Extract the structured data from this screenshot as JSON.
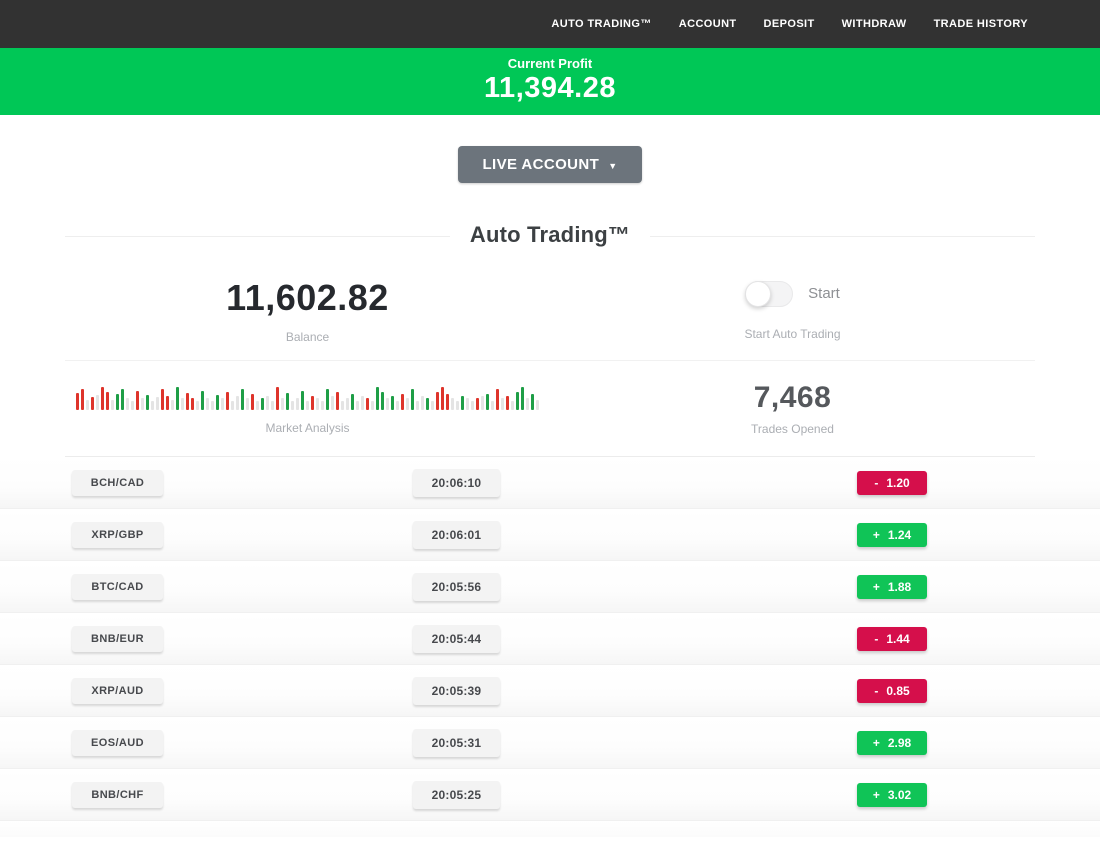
{
  "nav": {
    "items": [
      {
        "label": "AUTO TRADING™"
      },
      {
        "label": "ACCOUNT"
      },
      {
        "label": "DEPOSIT"
      },
      {
        "label": "WITHDRAW"
      },
      {
        "label": "TRADE HISTORY"
      }
    ]
  },
  "profit_banner": {
    "label": "Current Profit",
    "value": "11,394.28"
  },
  "account_selector": {
    "label": "LIVE ACCOUNT",
    "caret": "▼"
  },
  "section": {
    "title": "Auto Trading™"
  },
  "stats": {
    "balance": {
      "value": "11,602.82",
      "label": "Balance"
    },
    "auto_trading": {
      "toggle_label": "Start",
      "toggle_state": "off",
      "label": "Start Auto Trading"
    },
    "market_analysis": {
      "label": "Market Analysis",
      "bars": [
        [
          "r",
          17
        ],
        [
          "r",
          21
        ],
        [
          "x",
          10
        ],
        [
          "r",
          13
        ],
        [
          "x",
          15
        ],
        [
          "r",
          23
        ],
        [
          "r",
          18
        ],
        [
          "x",
          10
        ],
        [
          "g",
          16
        ],
        [
          "g",
          21
        ],
        [
          "x",
          12
        ],
        [
          "x",
          9
        ],
        [
          "r",
          19
        ],
        [
          "x",
          12
        ],
        [
          "g",
          15
        ],
        [
          "x",
          9
        ],
        [
          "x",
          13
        ],
        [
          "r",
          21
        ],
        [
          "r",
          14
        ],
        [
          "x",
          10
        ],
        [
          "g",
          23
        ],
        [
          "x",
          12
        ],
        [
          "r",
          17
        ],
        [
          "r",
          12
        ],
        [
          "x",
          9
        ],
        [
          "g",
          19
        ],
        [
          "x",
          12
        ],
        [
          "x",
          9
        ],
        [
          "g",
          15
        ],
        [
          "x",
          12
        ],
        [
          "r",
          18
        ],
        [
          "x",
          9
        ],
        [
          "x",
          14
        ],
        [
          "g",
          21
        ],
        [
          "x",
          12
        ],
        [
          "r",
          16
        ],
        [
          "x",
          9
        ],
        [
          "g",
          12
        ],
        [
          "x",
          14
        ],
        [
          "x",
          9
        ],
        [
          "r",
          23
        ],
        [
          "x",
          12
        ],
        [
          "g",
          17
        ],
        [
          "x",
          9
        ],
        [
          "x",
          12
        ],
        [
          "g",
          19
        ],
        [
          "x",
          9
        ],
        [
          "r",
          14
        ],
        [
          "x",
          12
        ],
        [
          "x",
          9
        ],
        [
          "g",
          21
        ],
        [
          "x",
          14
        ],
        [
          "r",
          18
        ],
        [
          "x",
          9
        ],
        [
          "x",
          12
        ],
        [
          "g",
          16
        ],
        [
          "x",
          9
        ],
        [
          "x",
          14
        ],
        [
          "r",
          12
        ],
        [
          "x",
          9
        ],
        [
          "g",
          23
        ],
        [
          "g",
          18
        ],
        [
          "x",
          12
        ],
        [
          "g",
          14
        ],
        [
          "x",
          9
        ],
        [
          "r",
          16
        ],
        [
          "x",
          12
        ],
        [
          "g",
          21
        ],
        [
          "x",
          9
        ],
        [
          "x",
          14
        ],
        [
          "g",
          12
        ],
        [
          "x",
          9
        ],
        [
          "r",
          18
        ],
        [
          "r",
          23
        ],
        [
          "r",
          16
        ],
        [
          "x",
          12
        ],
        [
          "x",
          9
        ],
        [
          "g",
          14
        ],
        [
          "x",
          12
        ],
        [
          "x",
          9
        ],
        [
          "r",
          12
        ],
        [
          "x",
          14
        ],
        [
          "g",
          16
        ],
        [
          "x",
          9
        ],
        [
          "r",
          21
        ],
        [
          "x",
          12
        ],
        [
          "r",
          14
        ],
        [
          "x",
          9
        ],
        [
          "g",
          18
        ],
        [
          "g",
          23
        ],
        [
          "x",
          12
        ],
        [
          "g",
          16
        ],
        [
          "x",
          10
        ]
      ]
    },
    "trades_opened": {
      "value": "7,468",
      "label": "Trades Opened"
    }
  },
  "trades": {
    "rows": [
      {
        "pair": "BCH/CAD",
        "time": "20:06:10",
        "sign": "-",
        "value": "1.20",
        "direction": "down"
      },
      {
        "pair": "XRP/GBP",
        "time": "20:06:01",
        "sign": "+",
        "value": "1.24",
        "direction": "up"
      },
      {
        "pair": "BTC/CAD",
        "time": "20:05:56",
        "sign": "+",
        "value": "1.88",
        "direction": "up"
      },
      {
        "pair": "BNB/EUR",
        "time": "20:05:44",
        "sign": "-",
        "value": "1.44",
        "direction": "down"
      },
      {
        "pair": "XRP/AUD",
        "time": "20:05:39",
        "sign": "-",
        "value": "0.85",
        "direction": "down"
      },
      {
        "pair": "EOS/AUD",
        "time": "20:05:31",
        "sign": "+",
        "value": "2.98",
        "direction": "up"
      },
      {
        "pair": "BNB/CHF",
        "time": "20:05:25",
        "sign": "+",
        "value": "3.02",
        "direction": "up"
      }
    ]
  },
  "colors": {
    "nav_dark": "#323232",
    "banner_green": "#00C756",
    "badge_green": "#10C457",
    "badge_red": "#D50F4B",
    "button_gray": "#6C747C",
    "bar_green": "#1E9E46",
    "bar_red": "#DE342B",
    "bar_gray": "#E4E4E4"
  }
}
